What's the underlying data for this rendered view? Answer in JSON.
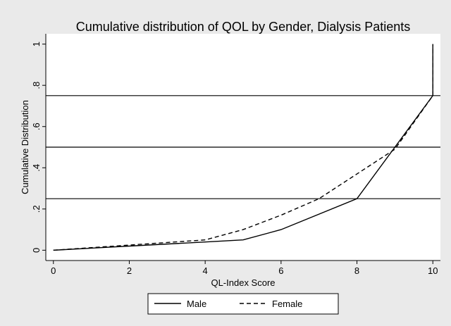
{
  "chart_data": {
    "type": "line",
    "title": "Cumulative distribution of QOL by Gender, Dialysis Patients",
    "x_label": "QL-Index Score",
    "y_label": "Cumulative Distribution",
    "series": [
      {
        "name": "Male",
        "color": "#000000",
        "line_style": "solid",
        "x": [
          0,
          2,
          4,
          5,
          6,
          8,
          10,
          10
        ],
        "values": [
          0,
          0.02,
          0.04,
          0.05,
          0.1,
          0.25,
          0.75,
          1
        ]
      },
      {
        "name": "Female",
        "color": "#000000",
        "line_style": "dashed",
        "x": [
          0,
          2,
          4,
          5,
          6,
          7,
          8,
          9,
          10,
          10
        ],
        "values": [
          0,
          0.025,
          0.05,
          0.1,
          0.17,
          0.25,
          0.37,
          0.49,
          0.75,
          1
        ]
      }
    ],
    "reference_lines": [
      0.25,
      0.5,
      0.75
    ],
    "xlim": [
      -0.2,
      10.2
    ],
    "xticks": [
      0,
      2,
      4,
      6,
      8,
      10
    ],
    "ylim": [
      -0.05,
      1.05
    ],
    "yticks": [
      0,
      {
        "value": 0.2,
        "label": ".2"
      },
      {
        "value": 0.4,
        "label": ".4"
      },
      {
        "value": 0.6,
        "label": ".6"
      },
      {
        "value": 0.8,
        "label": ".8"
      },
      1
    ],
    "legend": "bottom"
  }
}
